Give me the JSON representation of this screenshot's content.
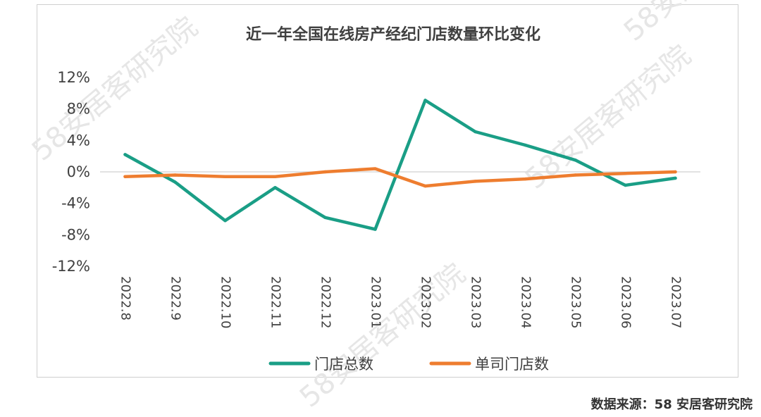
{
  "source_note": "数据来源：58 安居客研究院",
  "watermarks": [
    "58安居客研究院",
    "58安居客研究院",
    "58安居客研究院",
    "58安居客研究院"
  ],
  "colors": {
    "series_total": "#1a9e86",
    "series_single": "#ee7d2f",
    "axis": "#d9d9d9",
    "text": "#404040"
  },
  "chart_data": {
    "type": "line",
    "title": "近一年全国在线房产经纪门店数量环比变化",
    "categories": [
      "2022.8",
      "2022.9",
      "2022.10",
      "2022.11",
      "2022.12",
      "2023.01",
      "2023.02",
      "2023.03",
      "2023.04",
      "2023.05",
      "2023.06",
      "2023.07"
    ],
    "ylim": [
      -12,
      12
    ],
    "yticks": [
      12,
      8,
      4,
      0,
      -4,
      -8,
      -12
    ],
    "ytick_labels": [
      "12%",
      "8%",
      "4%",
      "0%",
      "-4%",
      "-8%",
      "-12%"
    ],
    "y_unit": "%",
    "grid": false,
    "legend_position": "bottom",
    "series": [
      {
        "name": "门店总数",
        "values": [
          2.2,
          -1.3,
          -6.2,
          -2.0,
          -5.8,
          -7.3,
          9.1,
          5.1,
          3.4,
          1.5,
          -1.7,
          -0.8
        ]
      },
      {
        "name": "单司门店数",
        "values": [
          -0.6,
          -0.4,
          -0.6,
          -0.6,
          0.0,
          0.4,
          -1.8,
          -1.2,
          -0.9,
          -0.4,
          -0.2,
          0.0
        ]
      }
    ]
  }
}
